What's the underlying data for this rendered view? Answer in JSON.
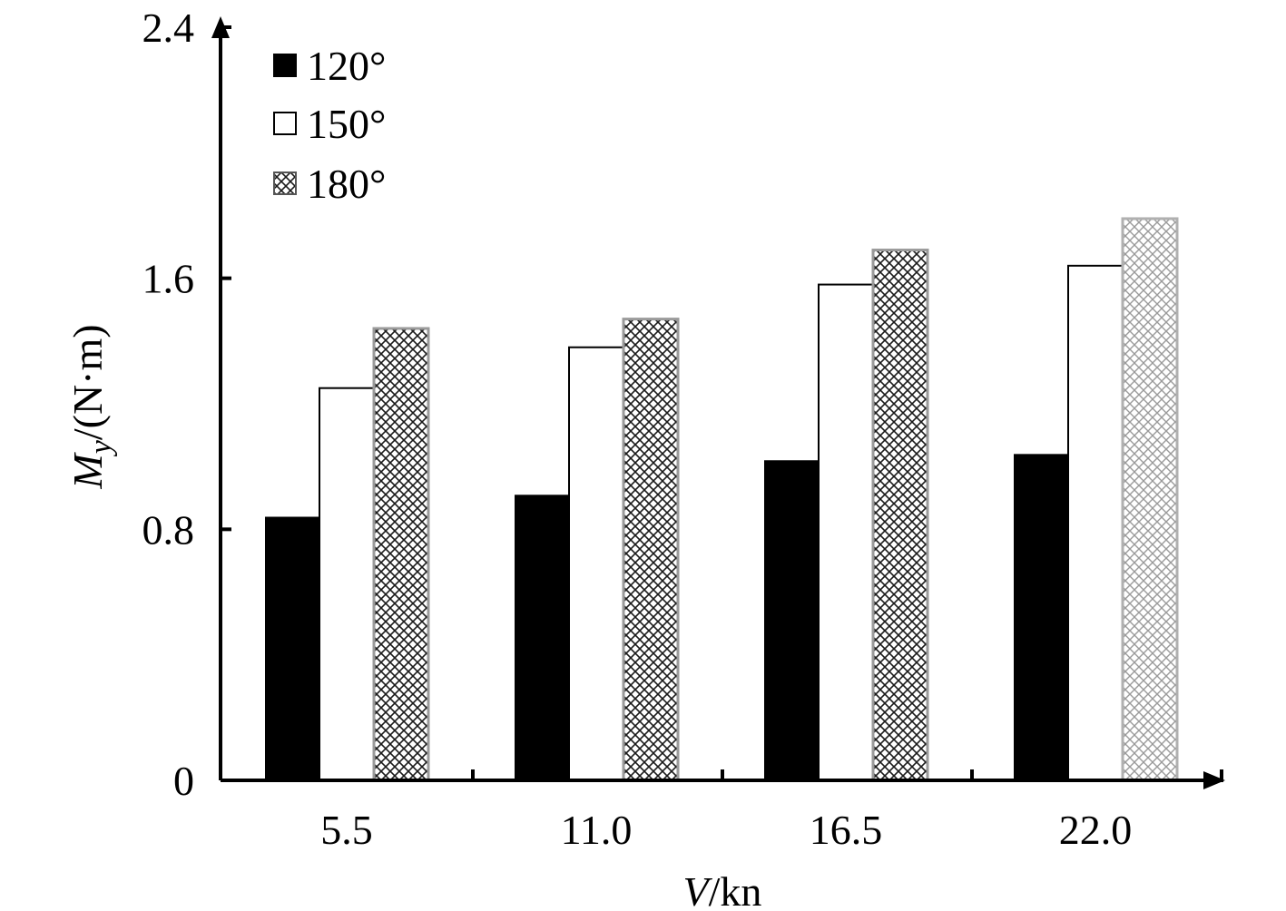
{
  "chart_data": {
    "type": "bar",
    "title": "",
    "xlabel_var": "V",
    "xlabel_unit": "/kn",
    "ylabel_var": "M",
    "ylabel_sub": "y",
    "ylabel_unit": "/(N·m)",
    "categories": [
      "5.5",
      "11.0",
      "16.5",
      "22.0"
    ],
    "series": [
      {
        "name": "120°",
        "style": "solid",
        "values": [
          0.84,
          0.91,
          1.02,
          1.04
        ]
      },
      {
        "name": "150°",
        "style": "hollow",
        "values": [
          1.25,
          1.38,
          1.58,
          1.64
        ]
      },
      {
        "name": "180°",
        "style": "crosshatch",
        "values": [
          1.44,
          1.47,
          1.69,
          1.79
        ]
      }
    ],
    "yticks": [
      "0",
      "0.8",
      "1.6",
      "2.4"
    ],
    "ylim": [
      0,
      2.4
    ],
    "grid": false,
    "legend_position": "top-left"
  },
  "colors": {
    "solid_fill": "#000000",
    "hollow_fill": "#ffffff",
    "hatch_dark": "#1a1a1a",
    "hatch_light": "#9a9a9a",
    "axis": "#000000"
  }
}
